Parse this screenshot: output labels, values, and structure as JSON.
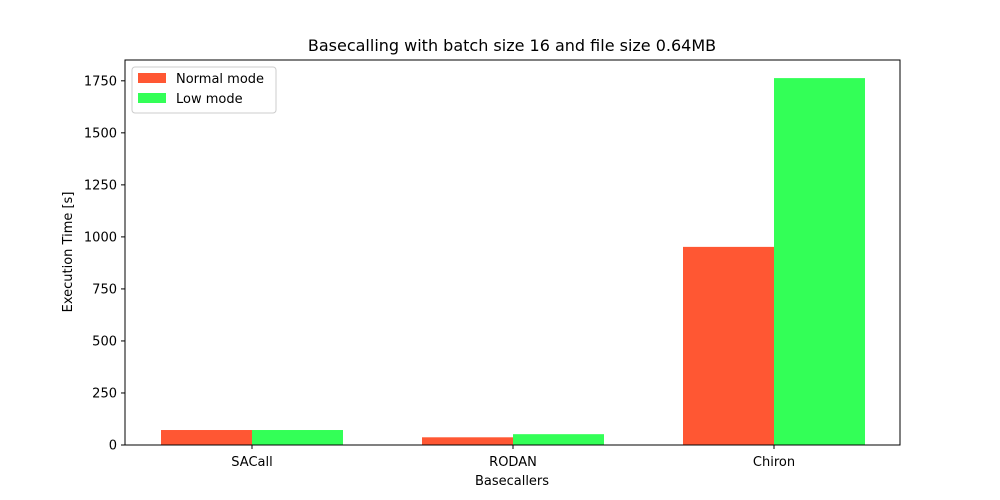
{
  "chart_data": {
    "type": "bar",
    "title": "Basecalling with batch size 16 and file size 0.64MB",
    "xlabel": "Basecallers",
    "ylabel": "Execution Time [s]",
    "categories": [
      "SACall",
      "RODAN",
      "Chiron"
    ],
    "series": [
      {
        "name": "Normal mode",
        "color": "#ff5733",
        "values": [
          72,
          37,
          952
        ]
      },
      {
        "name": "Low mode",
        "color": "#33ff57",
        "values": [
          72,
          52,
          1763
        ]
      }
    ],
    "ylim": [
      0,
      1850
    ],
    "yticks": [
      0,
      250,
      500,
      750,
      1000,
      1250,
      1500,
      1750
    ],
    "legend": "top-left",
    "grid": false
  }
}
